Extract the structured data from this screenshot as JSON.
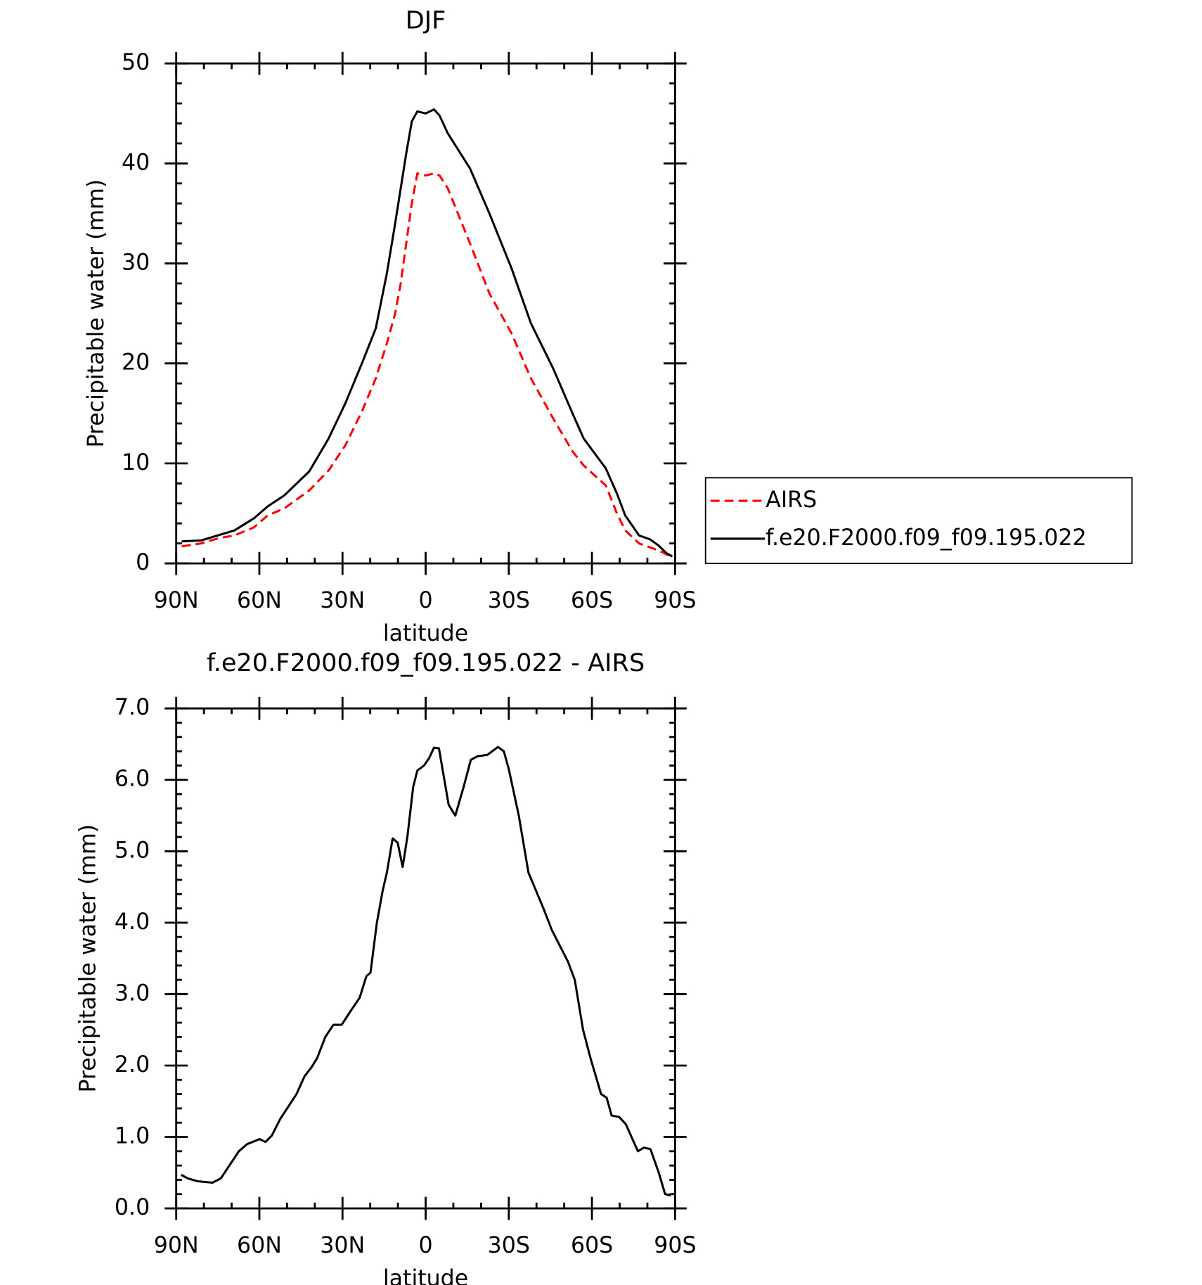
{
  "chart_data": [
    {
      "type": "line",
      "title": "DJF",
      "ylabel": "Precipitable water (mm)",
      "xlabel": "latitude",
      "x": [
        88,
        81,
        75,
        69,
        62,
        57,
        51,
        42,
        35,
        29,
        23,
        18,
        14,
        11,
        9,
        7,
        5,
        3,
        0,
        -3,
        -5,
        -8,
        -16,
        -23,
        -31,
        -38,
        -46,
        -53,
        -57,
        -65,
        -69,
        -72,
        -77,
        -81,
        -84,
        -87,
        -89
      ],
      "series": [
        {
          "name": "AIRS",
          "color": "#ff0000",
          "dash": true,
          "values": [
            1.7,
            2.0,
            2.5,
            2.8,
            3.6,
            4.8,
            5.5,
            7.3,
            9.3,
            11.8,
            15.2,
            18.5,
            22,
            25,
            28,
            32,
            36,
            39,
            38.8,
            39,
            38.8,
            37.5,
            32,
            27,
            23,
            18.5,
            14.5,
            11.2,
            9.8,
            7.8,
            5.0,
            3.3,
            2.0,
            1.6,
            1.3,
            0.9,
            0.6
          ]
        },
        {
          "name": "f.e20.F2000.f09_f09.195.022",
          "color": "#000000",
          "dash": false,
          "values": [
            2.2,
            2.3,
            2.8,
            3.3,
            4.5,
            5.7,
            6.8,
            9.2,
            12.5,
            16.0,
            20.0,
            23.5,
            29,
            34,
            37.5,
            41,
            44.2,
            45.2,
            45.0,
            45.4,
            44.8,
            43,
            39.5,
            35.0,
            29.5,
            24,
            19.5,
            15.0,
            12.5,
            9.5,
            7.0,
            4.8,
            2.8,
            2.4,
            1.8,
            1.0,
            0.7
          ]
        }
      ],
      "xlim": [
        90,
        -90
      ],
      "xticks": [
        {
          "value": 90,
          "label": "90N"
        },
        {
          "value": 60,
          "label": "60N"
        },
        {
          "value": 30,
          "label": "30N"
        },
        0,
        {
          "value": -30,
          "label": "30S"
        },
        {
          "value": -60,
          "label": "60S"
        },
        {
          "value": -90,
          "label": "90S"
        }
      ],
      "ylim": [
        0,
        50
      ],
      "yticks": [
        0,
        10,
        20,
        30,
        40,
        50
      ],
      "legend": "right"
    },
    {
      "type": "line",
      "title": "f.e20.F2000.f09_f09.195.022 - AIRS",
      "ylabel": "Precipitable water (mm)",
      "xlabel": "latitude",
      "x": [
        88.2,
        85.8,
        82.3,
        76.9,
        73.9,
        67.4,
        64.4,
        59.9,
        57.8,
        55.5,
        52.5,
        46.6,
        43.7,
        41.3,
        39.2,
        36.2,
        33.3,
        30.3,
        27.3,
        23.8,
        21.4,
        19.9,
        17.6,
        15.5,
        14,
        11.9,
        10.1,
        8.3,
        6.6,
        4.5,
        3,
        0.6,
        -1.2,
        -3,
        -4.8,
        -8.3,
        -10.7,
        -13.7,
        -16.3,
        -18.7,
        -22.3,
        -26.1,
        -28.2,
        -30,
        -33.6,
        -37.1,
        -42.5,
        -45.5,
        -51.4,
        -53.8,
        -56.8,
        -59.5,
        -63.3,
        -65.3,
        -67.1,
        -69.8,
        -72.2,
        -76.6,
        -78.7,
        -81.1,
        -84.1,
        -86.4,
        -88.5
      ],
      "series": [
        {
          "color": "#000000",
          "dash": false,
          "values": [
            0.47,
            0.42,
            0.38,
            0.36,
            0.42,
            0.8,
            0.9,
            0.97,
            0.93,
            1.02,
            1.25,
            1.6,
            1.85,
            1.97,
            2.1,
            2.4,
            2.57,
            2.57,
            2.75,
            2.95,
            3.25,
            3.3,
            4.0,
            4.45,
            4.7,
            5.18,
            5.12,
            4.78,
            5.2,
            5.9,
            6.13,
            6.2,
            6.3,
            6.45,
            6.44,
            5.65,
            5.5,
            5.9,
            6.28,
            6.33,
            6.35,
            6.46,
            6.4,
            6.15,
            5.5,
            4.7,
            4.2,
            3.9,
            3.45,
            3.2,
            2.5,
            2.1,
            1.6,
            1.55,
            1.3,
            1.28,
            1.18,
            0.8,
            0.85,
            0.83,
            0.5,
            0.2,
            0.18
          ]
        }
      ],
      "xlim": [
        90,
        -90
      ],
      "xticks": [
        {
          "value": 90,
          "label": "90N"
        },
        {
          "value": 60,
          "label": "60N"
        },
        {
          "value": 30,
          "label": "30N"
        },
        0,
        {
          "value": -30,
          "label": "30S"
        },
        {
          "value": -60,
          "label": "60S"
        },
        {
          "value": -90,
          "label": "90S"
        }
      ],
      "ylim": [
        0,
        7
      ],
      "yticks": [
        {
          "value": 0,
          "label": "0.0"
        },
        {
          "value": 1,
          "label": "1.0"
        },
        {
          "value": 2,
          "label": "2.0"
        },
        {
          "value": 3,
          "label": "3.0"
        },
        {
          "value": 4,
          "label": "4.0"
        },
        {
          "value": 5,
          "label": "5.0"
        },
        {
          "value": 6,
          "label": "6.0"
        },
        {
          "value": 7,
          "label": "7.0"
        }
      ]
    }
  ]
}
